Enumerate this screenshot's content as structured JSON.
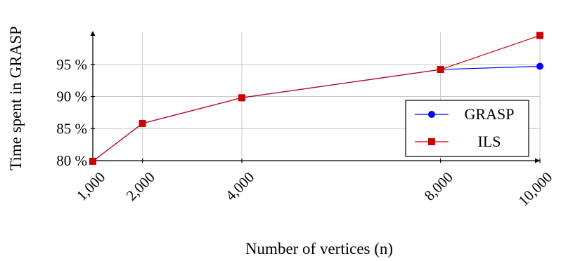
{
  "chart_data": {
    "type": "line",
    "xlabel": "Number of vertices (n)",
    "ylabel": "Time spent in GRASP",
    "x": [
      1000,
      2000,
      4000,
      8000,
      10000
    ],
    "x_tick_labels": [
      "1,000",
      "2,000",
      "4,000",
      "8,000",
      "10,000"
    ],
    "y_tick_values": [
      80,
      85,
      90,
      95
    ],
    "y_tick_labels": [
      "80 %",
      "85 %",
      "90 %",
      "95 %"
    ],
    "xlim": [
      1000,
      10000
    ],
    "ylim": [
      80,
      100
    ],
    "grid": true,
    "legend_position": "bottom-right",
    "series": [
      {
        "name": "GRASP",
        "color": "#0000ff",
        "marker": "circle",
        "values": [
          79.9,
          85.8,
          89.8,
          94.2,
          94.7
        ]
      },
      {
        "name": "ILS",
        "color": "#cc0000",
        "marker": "square",
        "values": [
          79.9,
          85.8,
          89.8,
          94.2,
          99.5
        ]
      }
    ]
  }
}
